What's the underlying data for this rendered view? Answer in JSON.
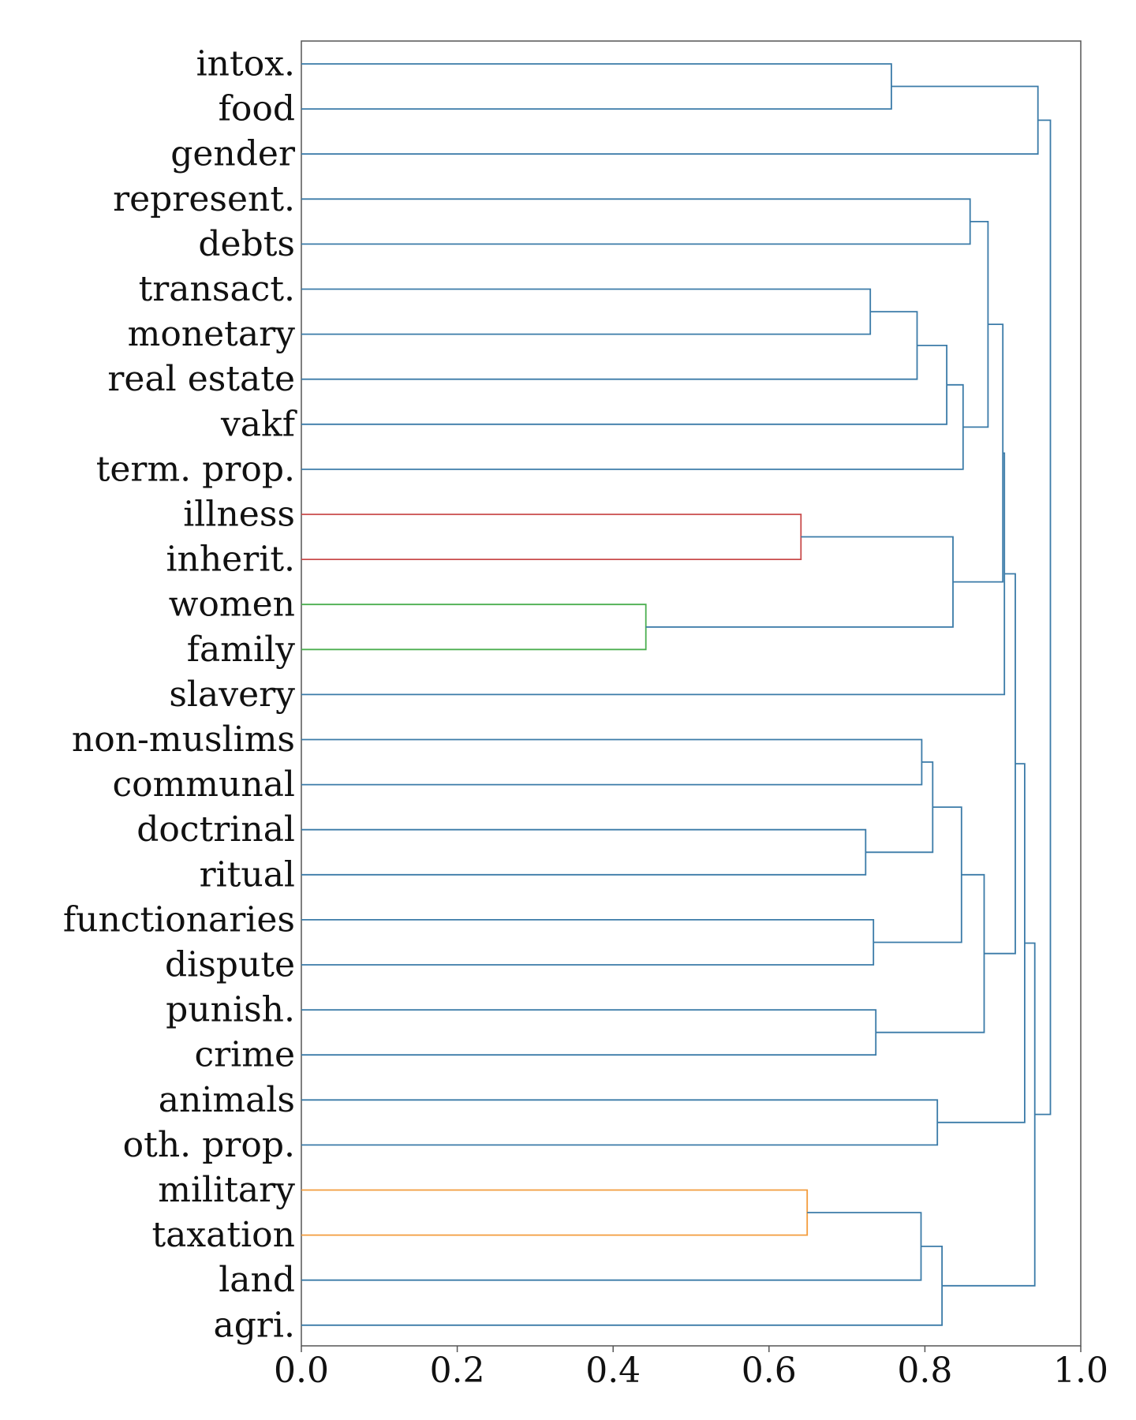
{
  "chart_data": {
    "type": "dendrogram",
    "title": "",
    "xlabel": "",
    "ylabel": "",
    "xlim": [
      0,
      1.0
    ],
    "x_ticks": [
      "0.0",
      "0.2",
      "0.4",
      "0.6",
      "0.8",
      "1.0"
    ],
    "grid": false,
    "orientation": "left-leaves",
    "colors": {
      "default": "#3b7ba8",
      "red": "#c94b4b",
      "green": "#4caf50",
      "orange": "#f39c3d",
      "axis": "#555555"
    },
    "leaves": [
      "intox.",
      "food",
      "gender",
      "represent.",
      "debts",
      "transact.",
      "monetary",
      "real estate",
      "vakf",
      "term. prop.",
      "illness",
      "inherit.",
      "women",
      "family",
      "slavery",
      "non-muslims",
      "communal",
      "doctrinal",
      "ritual",
      "functionaries",
      "dispute",
      "punish.",
      "crime",
      "animals",
      "oth. prop.",
      "military",
      "taxation",
      "land",
      "agri."
    ],
    "merges": [
      {
        "id": "m1",
        "left": "L0",
        "right": "L1",
        "height": 0.757,
        "color": "default"
      },
      {
        "id": "m2",
        "left": "m1",
        "right": "L2",
        "height": 0.945,
        "color": "default"
      },
      {
        "id": "m3",
        "left": "L3",
        "right": "L4",
        "height": 0.858,
        "color": "default"
      },
      {
        "id": "m4",
        "left": "L5",
        "right": "L6",
        "height": 0.73,
        "color": "default"
      },
      {
        "id": "m5",
        "left": "m4",
        "right": "L7",
        "height": 0.79,
        "color": "default"
      },
      {
        "id": "m6",
        "left": "m5",
        "right": "L8",
        "height": 0.828,
        "color": "default"
      },
      {
        "id": "m7",
        "left": "m6",
        "right": "L9",
        "height": 0.849,
        "color": "default"
      },
      {
        "id": "m8",
        "left": "m3",
        "right": "m7",
        "height": 0.881,
        "color": "default"
      },
      {
        "id": "m9",
        "left": "L10",
        "right": "L11",
        "height": 0.641,
        "color": "red"
      },
      {
        "id": "m10",
        "left": "L12",
        "right": "L13",
        "height": 0.442,
        "color": "green"
      },
      {
        "id": "m11",
        "left": "m9",
        "right": "m10",
        "height": 0.836,
        "color": "default"
      },
      {
        "id": "m12",
        "left": "m8",
        "right": "m11",
        "height": 0.9,
        "color": "default"
      },
      {
        "id": "m13",
        "left": "m12",
        "right": "L14",
        "height": 0.902,
        "color": "default"
      },
      {
        "id": "m14",
        "left": "L15",
        "right": "L16",
        "height": 0.796,
        "color": "default"
      },
      {
        "id": "m15",
        "left": "L17",
        "right": "L18",
        "height": 0.724,
        "color": "default"
      },
      {
        "id": "m16",
        "left": "m14",
        "right": "m15",
        "height": 0.81,
        "color": "default"
      },
      {
        "id": "m17",
        "left": "L19",
        "right": "L20",
        "height": 0.734,
        "color": "default"
      },
      {
        "id": "m18",
        "left": "m16",
        "right": "m17",
        "height": 0.847,
        "color": "default"
      },
      {
        "id": "m19",
        "left": "L21",
        "right": "L22",
        "height": 0.737,
        "color": "default"
      },
      {
        "id": "m20",
        "left": "m18",
        "right": "m19",
        "height": 0.876,
        "color": "default"
      },
      {
        "id": "m21",
        "left": "m13",
        "right": "m20",
        "height": 0.916,
        "color": "default"
      },
      {
        "id": "m22",
        "left": "L23",
        "right": "L24",
        "height": 0.816,
        "color": "default"
      },
      {
        "id": "m23",
        "left": "m21",
        "right": "m22",
        "height": 0.928,
        "color": "default"
      },
      {
        "id": "m24",
        "left": "L25",
        "right": "L26",
        "height": 0.649,
        "color": "orange"
      },
      {
        "id": "m25",
        "left": "m24",
        "right": "L27",
        "height": 0.795,
        "color": "default"
      },
      {
        "id": "m26",
        "left": "m25",
        "right": "L28",
        "height": 0.822,
        "color": "default"
      },
      {
        "id": "m27",
        "left": "m23",
        "right": "m26",
        "height": 0.941,
        "color": "default"
      },
      {
        "id": "m28",
        "left": "m2",
        "right": "m27",
        "height": 0.961,
        "color": "default"
      }
    ]
  }
}
